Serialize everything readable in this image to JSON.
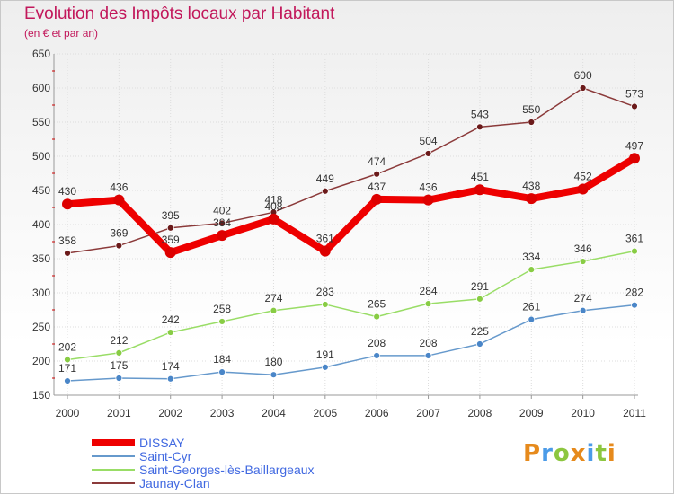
{
  "chart_data": {
    "type": "line",
    "title": "Evolution des Impôts locaux par Habitant",
    "subtitle": "(en € et par an)",
    "categories": [
      "2000",
      "2001",
      "2002",
      "2003",
      "2004",
      "2005",
      "2006",
      "2007",
      "2008",
      "2009",
      "2010",
      "2011"
    ],
    "ylim": [
      150,
      650
    ],
    "yticks": [
      150,
      200,
      250,
      300,
      350,
      400,
      450,
      500,
      550,
      600,
      650
    ],
    "series": [
      {
        "name": "DISSAY",
        "color": "#ee0000",
        "marker": "#dd0000",
        "values": [
          430,
          436,
          359,
          384,
          408,
          361,
          437,
          436,
          451,
          438,
          452,
          497
        ]
      },
      {
        "name": "Saint-Cyr",
        "color": "#6699cc",
        "marker": "#4a86c8",
        "values": [
          171,
          175,
          174,
          184,
          180,
          191,
          208,
          208,
          225,
          261,
          274,
          282
        ]
      },
      {
        "name": "Saint-Georges-lès-Baillargeaux",
        "color": "#99dd66",
        "marker": "#88cc44",
        "values": [
          202,
          212,
          242,
          258,
          274,
          283,
          265,
          284,
          291,
          334,
          346,
          361
        ]
      },
      {
        "name": "Jaunay-Clan",
        "color": "#8b3a3a",
        "marker": "#6b1a1a",
        "values": [
          358,
          369,
          395,
          402,
          418,
          449,
          474,
          504,
          543,
          550,
          600,
          573
        ]
      }
    ]
  },
  "logo": {
    "text": "Proxiti"
  }
}
